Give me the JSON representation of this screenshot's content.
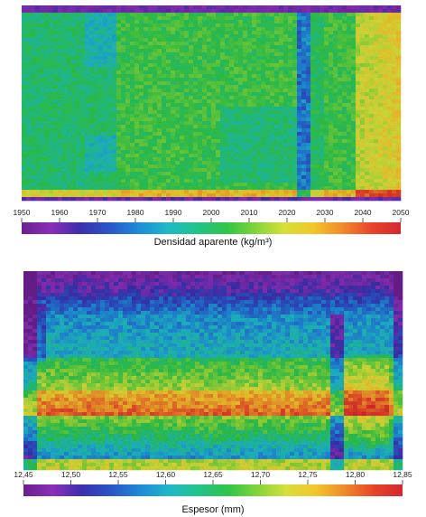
{
  "colormap": [
    "#6b1f8f",
    "#8a2fb8",
    "#3b2fae",
    "#2a55c8",
    "#1f8ad8",
    "#1fb8c8",
    "#22c28a",
    "#2fc54a",
    "#7fd43a",
    "#d6e03a",
    "#f2c62b",
    "#f08a2a",
    "#e8452a",
    "#d6262e"
  ],
  "chart_data": [
    {
      "type": "heatmap",
      "title": "",
      "xlabel": "Densidad aparente (kg/m³)",
      "ylabel": "",
      "colorbar_range": [
        1950,
        2050
      ],
      "colorbar_ticks": [
        "1950",
        "1960",
        "1970",
        "1980",
        "1990",
        "2000",
        "2010",
        "2020",
        "2030",
        "2040",
        "2050"
      ],
      "description_values": {
        "background_value": 2005,
        "low_density_band": {
          "x_fraction": [
            0.72,
            0.75
          ],
          "value": 1975
        },
        "edge_value": 2035
      }
    },
    {
      "type": "heatmap",
      "title": "",
      "xlabel": "Espesor (mm)",
      "ylabel": "",
      "colorbar_range": [
        12.45,
        12.85
      ],
      "colorbar_ticks": [
        "12,45",
        "12,50",
        "12,55",
        "12,60",
        "12,65",
        "12,70",
        "12,75",
        "12,80",
        "12,85"
      ],
      "description_values": {
        "top_edge_value": 12.47,
        "middle_value": 12.58,
        "thick_band_value": 12.8
      }
    }
  ]
}
